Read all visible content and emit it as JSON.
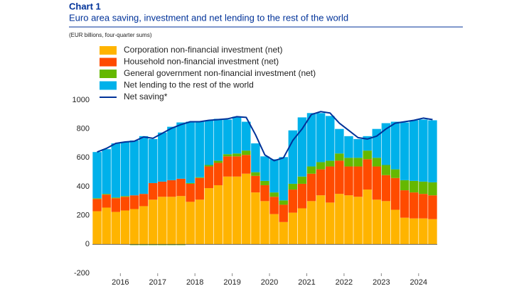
{
  "chart_data": {
    "type": "bar",
    "stacked": true,
    "title": "Chart 1",
    "subtitle": "Euro area saving, investment and net lending to the rest of the world",
    "note": "(EUR billions, four-quarter sums)",
    "x": [
      2015.875,
      2016.125,
      2016.375,
      2016.625,
      2016.875,
      2017.125,
      2017.375,
      2017.625,
      2017.875,
      2018.125,
      2018.375,
      2018.625,
      2018.875,
      2019.125,
      2019.375,
      2019.625,
      2019.875,
      2020.125,
      2020.375,
      2020.625,
      2020.875,
      2021.125,
      2021.375,
      2021.625,
      2021.875,
      2022.125,
      2022.375,
      2022.625,
      2022.875,
      2023.125,
      2023.375,
      2023.625,
      2023.875,
      2024.125,
      2024.375,
      2024.625,
      2024.875
    ],
    "xlim": [
      2015.75,
      2025
    ],
    "xticks": [
      {
        "value": 2016.5,
        "label": "2016"
      },
      {
        "value": 2017.5,
        "label": "2017"
      },
      {
        "value": 2018.5,
        "label": "2018"
      },
      {
        "value": 2019.5,
        "label": "2019"
      },
      {
        "value": 2020.5,
        "label": "2020"
      },
      {
        "value": 2021.5,
        "label": "2021"
      },
      {
        "value": 2022.5,
        "label": "2022"
      },
      {
        "value": 2023.5,
        "label": "2023"
      },
      {
        "value": 2024.5,
        "label": "2024"
      }
    ],
    "ylim": [
      -200,
      1000
    ],
    "yticks": [
      -200,
      0,
      200,
      400,
      600,
      800,
      1000
    ],
    "series": [
      {
        "name": "Corporation non-financial investment (net)",
        "color": "#ffb400",
        "values": [
          230,
          255,
          225,
          235,
          245,
          265,
          310,
          330,
          330,
          335,
          295,
          310,
          390,
          410,
          470,
          470,
          490,
          360,
          300,
          210,
          155,
          220,
          250,
          300,
          340,
          290,
          350,
          340,
          330,
          380,
          310,
          300,
          240,
          185,
          180,
          180,
          175
        ]
      },
      {
        "name": "Household non-financial investment (net)",
        "color": "#ff4b00",
        "values": [
          85,
          90,
          95,
          95,
          95,
          85,
          115,
          105,
          115,
          120,
          125,
          150,
          150,
          155,
          140,
          140,
          130,
          115,
          110,
          120,
          120,
          160,
          170,
          190,
          180,
          250,
          230,
          200,
          210,
          210,
          230,
          180,
          220,
          190,
          180,
          170,
          165
        ]
      },
      {
        "name": "General government non-financial investment (net)",
        "color": "#65b800",
        "values": [
          5,
          5,
          5,
          5,
          -5,
          -5,
          -5,
          -5,
          -5,
          -5,
          5,
          5,
          10,
          15,
          15,
          20,
          30,
          25,
          30,
          30,
          30,
          40,
          50,
          50,
          50,
          40,
          50,
          60,
          60,
          60,
          60,
          70,
          60,
          70,
          80,
          85,
          90
        ]
      },
      {
        "name": "Net lending to the rest of the world",
        "color": "#00b1ea",
        "values": [
          320,
          310,
          375,
          375,
          380,
          400,
          305,
          340,
          370,
          390,
          425,
          385,
          310,
          290,
          240,
          255,
          200,
          200,
          170,
          230,
          300,
          370,
          410,
          370,
          340,
          310,
          170,
          150,
          130,
          100,
          200,
          290,
          330,
          400,
          420,
          430,
          430
        ]
      },
      {
        "name": "Net saving*",
        "color": "#003299",
        "type": "line",
        "values": [
          640,
          665,
          700,
          710,
          715,
          745,
          735,
          770,
          805,
          830,
          850,
          850,
          860,
          865,
          870,
          885,
          880,
          760,
          620,
          580,
          600,
          720,
          800,
          900,
          920,
          910,
          840,
          790,
          740,
          730,
          750,
          800,
          840,
          850,
          860,
          875,
          865
        ]
      }
    ]
  }
}
